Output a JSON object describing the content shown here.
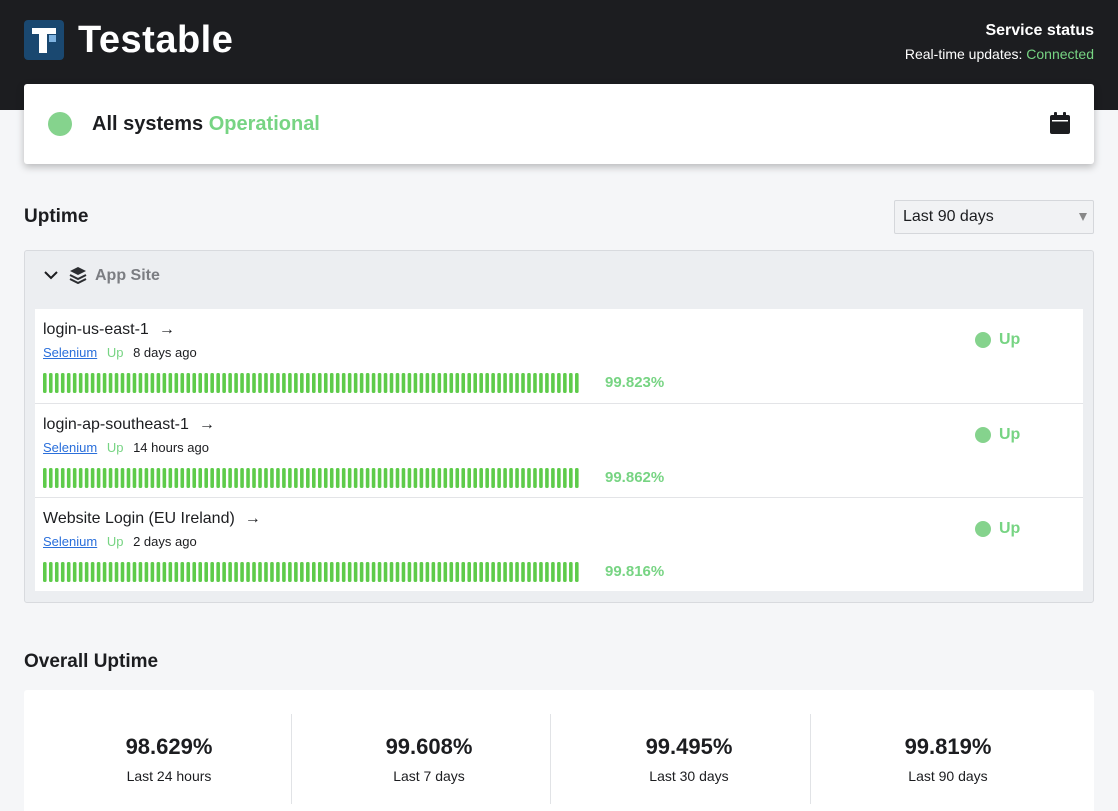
{
  "header": {
    "brand": "Testable",
    "service_title": "Service status",
    "realtime_label": "Real-time updates:",
    "realtime_state": "Connected"
  },
  "status": {
    "prefix": "All systems",
    "state": "Operational",
    "icon": "calendar-icon"
  },
  "uptime": {
    "title": "Uptime",
    "range_selected": "Last 90 days",
    "group": {
      "label": "App Site",
      "icon": "layers-icon",
      "monitors": [
        {
          "name": "login-us-east-1",
          "tag": "Selenium",
          "state": "Up",
          "ago": "8 days ago",
          "percent": "99.823%",
          "status": "Up"
        },
        {
          "name": "login-ap-southeast-1",
          "tag": "Selenium",
          "state": "Up",
          "ago": "14 hours ago",
          "percent": "99.862%",
          "status": "Up"
        },
        {
          "name": "Website Login (EU Ireland)",
          "tag": "Selenium",
          "state": "Up",
          "ago": "2 days ago",
          "percent": "99.816%",
          "status": "Up"
        }
      ]
    }
  },
  "overall": {
    "title": "Overall Uptime",
    "stats": [
      {
        "value": "98.629%",
        "period": "Last 24 hours"
      },
      {
        "value": "99.608%",
        "period": "Last 7 days"
      },
      {
        "value": "99.495%",
        "period": "Last 30 days"
      },
      {
        "value": "99.819%",
        "period": "Last 90 days"
      }
    ]
  },
  "colors": {
    "ok": "#77d483",
    "dark": "#1c1d20",
    "link": "#2a6fdb",
    "bar": "#5ecb4a"
  },
  "bar_days": 90
}
